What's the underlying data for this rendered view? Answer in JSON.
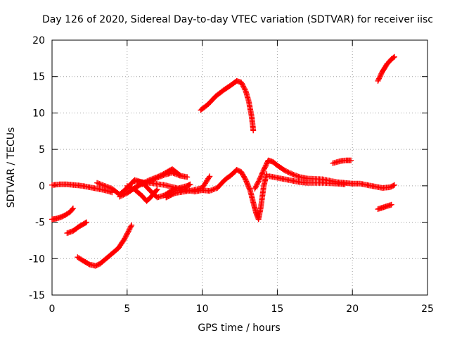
{
  "chart_data": {
    "type": "scatter",
    "title": "Day 126 of 2020, Sidereal Day-to-day VTEC variation (SDTVAR) for receiver iisc",
    "xlabel": "GPS time / hours",
    "ylabel": "SDTVAR / TECUs",
    "xlim": [
      0,
      25
    ],
    "ylim": [
      -15,
      20
    ],
    "xticks": [
      0,
      5,
      10,
      15,
      20,
      25
    ],
    "yticks": [
      -15,
      -10,
      -5,
      0,
      5,
      10,
      15,
      20
    ],
    "xtick_labels": [
      "0",
      "5",
      "10",
      "15",
      "20",
      "25"
    ],
    "ytick_labels": [
      "-15",
      "-10",
      "-5",
      "0",
      "5",
      "10",
      "15",
      "20"
    ],
    "grid": true,
    "marker": "+",
    "color": "#ff0000",
    "series": [
      {
        "name": "track-near-zero-0-4h",
        "x": [
          0,
          0.5,
          1,
          1.5,
          2,
          2.5,
          3,
          3.5,
          4
        ],
        "y": [
          0.1,
          0.2,
          0.2,
          0.1,
          0,
          -0.2,
          -0.4,
          -0.6,
          -0.9
        ]
      },
      {
        "name": "track-lower-0-1.4h",
        "x": [
          0,
          0.3,
          0.6,
          0.9,
          1.2,
          1.4
        ],
        "y": [
          -4.6,
          -4.5,
          -4.3,
          -4,
          -3.6,
          -3.1
        ]
      },
      {
        "name": "track-1-2.3h",
        "x": [
          1,
          1.4,
          1.8,
          2.3
        ],
        "y": [
          -6.5,
          -6.2,
          -5.6,
          -5
        ]
      },
      {
        "name": "track-low-1.7-5.3h",
        "x": [
          1.7,
          2,
          2.5,
          2.9,
          3.2,
          3.6,
          4,
          4.4,
          4.8,
          5.3
        ],
        "y": [
          -9.8,
          -10.2,
          -10.8,
          -11,
          -10.7,
          -10,
          -9.3,
          -8.6,
          -7.4,
          -5.4
        ]
      },
      {
        "name": "track-wave-3-9.2h",
        "x": [
          3,
          4,
          4.5,
          5,
          5.5,
          6,
          6.5,
          7,
          7.5,
          8,
          8.5,
          9,
          9.2
        ],
        "y": [
          0.4,
          -0.4,
          -1.2,
          -0.3,
          0.8,
          0.5,
          -0.6,
          -1.6,
          -1.3,
          -0.6,
          -0.3,
          0,
          0.2
        ]
      },
      {
        "name": "track-rise-4.5-8.5h",
        "x": [
          4.5,
          5,
          5.5,
          6,
          6.5,
          7,
          7.5,
          8,
          8.5
        ],
        "y": [
          -1.5,
          -1,
          -0.3,
          0.3,
          0.8,
          1.2,
          1.7,
          2.3,
          1.5
        ]
      },
      {
        "name": "track-dip-5-7h",
        "x": [
          5,
          5.5,
          6,
          6.3,
          6.6,
          7
        ],
        "y": [
          0,
          -0.5,
          -1.4,
          -2.1,
          -1.5,
          -0.5
        ]
      },
      {
        "name": "track-bump-6-9h",
        "x": [
          6,
          6.5,
          7,
          7.5,
          8,
          8.5,
          9
        ],
        "y": [
          0.2,
          0.6,
          1.1,
          1.5,
          1.8,
          1.4,
          1.2
        ]
      },
      {
        "name": "track-cross-5.5-10h",
        "x": [
          5.5,
          6.5,
          7.5,
          8.5,
          9.5,
          10
        ],
        "y": [
          0.6,
          0.4,
          0.1,
          -0.4,
          -0.8,
          -0.6
        ]
      },
      {
        "name": "track-7.6-10.5h",
        "x": [
          7.6,
          8.2,
          8.8,
          9.4,
          10,
          10.5
        ],
        "y": [
          -1.6,
          -1,
          -0.8,
          -0.6,
          -0.3,
          1.3
        ]
      },
      {
        "name": "track-high-9.9-13.4h",
        "x": [
          9.9,
          10.4,
          10.9,
          11.4,
          11.9,
          12.3,
          12.6,
          12.9,
          13.1,
          13.3,
          13.4
        ],
        "y": [
          10.4,
          11.2,
          12.3,
          13.1,
          13.8,
          14.4,
          14.2,
          13,
          11.6,
          9.4,
          7.6
        ]
      },
      {
        "name": "track-central-10-14h",
        "x": [
          10,
          10.5,
          11,
          11.5,
          12,
          12.3,
          12.6,
          12.9,
          13.2,
          13.4,
          13.6,
          13.75,
          13.9,
          14.1,
          14.3
        ],
        "y": [
          -0.6,
          -0.7,
          -0.3,
          0.8,
          1.6,
          2.2,
          1.9,
          0.8,
          -0.7,
          -2.3,
          -3.8,
          -4.6,
          -3,
          0,
          1.6
        ]
      },
      {
        "name": "track-peak-13.5-20h",
        "x": [
          13.5,
          13.8,
          14.1,
          14.4,
          14.7,
          15,
          15.5,
          16,
          16.5,
          17,
          18,
          19,
          19.5,
          20
        ],
        "y": [
          -0.4,
          0.8,
          2.2,
          3.5,
          3.3,
          2.8,
          2.1,
          1.6,
          1.2,
          1,
          0.9,
          0.5,
          0.4,
          0.3
        ]
      },
      {
        "name": "track-flat-14.5-19.5h",
        "x": [
          14.5,
          15,
          15.5,
          16,
          16.5,
          17,
          18,
          19,
          19.5
        ],
        "y": [
          1.3,
          1.1,
          0.9,
          0.7,
          0.5,
          0.4,
          0.4,
          0.3,
          0.2
        ]
      },
      {
        "name": "track-short-18.7-19.9h",
        "x": [
          18.7,
          19.2,
          19.6,
          19.9
        ],
        "y": [
          3.1,
          3.4,
          3.5,
          3.5
        ]
      },
      {
        "name": "track-flat-20-22.8h",
        "x": [
          20,
          20.5,
          21,
          21.5,
          22,
          22.5,
          22.8
        ],
        "y": [
          0.3,
          0.3,
          0.1,
          -0.1,
          -0.3,
          -0.2,
          0.1
        ]
      },
      {
        "name": "track-high-21.7-22.8h",
        "x": [
          21.7,
          22,
          22.3,
          22.6,
          22.8
        ],
        "y": [
          14.4,
          15.7,
          16.7,
          17.4,
          17.7
        ]
      },
      {
        "name": "track-low-21.7-22.6h",
        "x": [
          21.7,
          22,
          22.3,
          22.6
        ],
        "y": [
          -3.2,
          -3,
          -2.8,
          -2.6
        ]
      }
    ]
  }
}
